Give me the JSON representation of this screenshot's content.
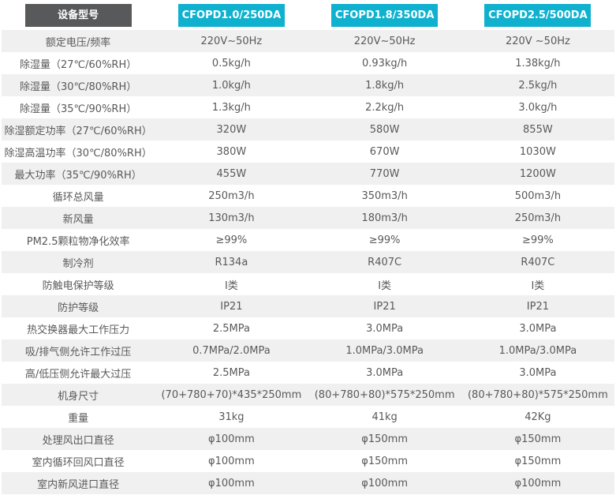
{
  "theme": {
    "header_label_bg": "#58595B",
    "model_header_bg": "#0FB1CF",
    "alt_row_bg": "#F0F0F1",
    "text_color": "#595959",
    "header_text_color": "#FFFFFF"
  },
  "table": {
    "header": {
      "label": "设备型号",
      "models": [
        "CFOPD1.0/250DA",
        "CFOPD1.8/350DA",
        "CFOPD2.5/500DA"
      ]
    },
    "rows": [
      {
        "label": "额定电压/频率",
        "values": [
          "220V~50Hz",
          "220V~50Hz",
          "220V ~50Hz"
        ]
      },
      {
        "label": "除湿量（27℃/60%RH）",
        "values": [
          "0.5kg/h",
          "0.93kg/h",
          "1.38kg/h"
        ]
      },
      {
        "label": "除湿量（30℃/80%RH）",
        "values": [
          "1.0kg/h",
          "1.8kg/h",
          "2.5kg/h"
        ]
      },
      {
        "label": "除湿量（35℃/90%RH）",
        "values": [
          "1.3kg/h",
          "2.2kg/h",
          "3.0kg/h"
        ]
      },
      {
        "label": "除湿额定功率（27℃/60%RH）",
        "values": [
          "320W",
          "580W",
          "855W"
        ]
      },
      {
        "label": "除湿高温功率（30℃/80%RH）",
        "values": [
          "380W",
          "670W",
          "1030W"
        ]
      },
      {
        "label": "最大功率（35℃/90%RH）",
        "values": [
          "455W",
          "770W",
          "1200W"
        ]
      },
      {
        "label": "循环总风量",
        "values": [
          "250m3/h",
          "350m3/h",
          "500m3/h"
        ]
      },
      {
        "label": "新风量",
        "values": [
          "130m3/h",
          "180m3/h",
          "250m3/h"
        ]
      },
      {
        "label": "PM2.5颗粒物净化效率",
        "values": [
          "≥99%",
          "≥99%",
          "≥99%"
        ]
      },
      {
        "label": "制冷剂",
        "values": [
          "R134a",
          "R407C",
          "R407C"
        ]
      },
      {
        "label": "防触电保护等级",
        "values": [
          "I类",
          "I类",
          "I类"
        ]
      },
      {
        "label": "防护等级",
        "values": [
          "IP21",
          "IP21",
          "IP21"
        ]
      },
      {
        "label": "热交换器最大工作压力",
        "values": [
          "2.5MPa",
          "3.0MPa",
          "3.0MPa"
        ]
      },
      {
        "label": "吸/排气侧允许工作过压",
        "values": [
          "0.7MPa/2.0MPa",
          "1.0MPa/3.0MPa",
          "1.0MPa/3.0MPa"
        ]
      },
      {
        "label": "高/低压侧允许最大过压",
        "values": [
          "2.5MPa",
          "3.0MPa",
          "3.0MPa"
        ]
      },
      {
        "label": "机身尺寸",
        "values": [
          "(70+780+70)*435*250mm",
          "(80+780+80)*575*250mm",
          "(80+780+80)*575*250mm"
        ]
      },
      {
        "label": "重量",
        "values": [
          "31kg",
          "41kg",
          "42Kg"
        ]
      },
      {
        "label": "处理风出口直径",
        "values": [
          "φ100mm",
          "φ150mm",
          "φ150mm"
        ]
      },
      {
        "label": "室内循环回风口直径",
        "values": [
          "φ100mm",
          "φ150mm",
          "φ150mm"
        ]
      },
      {
        "label": "室内新风进口直径",
        "values": [
          "φ100mm",
          "φ100mm",
          "φ100mm"
        ]
      }
    ]
  }
}
